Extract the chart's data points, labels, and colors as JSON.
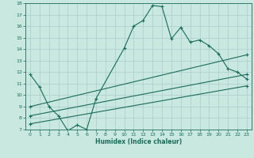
{
  "title": "",
  "xlabel": "Humidex (Indice chaleur)",
  "bg_color": "#c8e8e0",
  "grid_color": "#aacccc",
  "line_color": "#1a6b5a",
  "xlim": [
    -0.5,
    23.5
  ],
  "ylim": [
    7,
    18
  ],
  "xticks": [
    0,
    1,
    2,
    3,
    4,
    5,
    6,
    7,
    8,
    9,
    10,
    11,
    12,
    13,
    14,
    15,
    16,
    17,
    18,
    19,
    20,
    21,
    22,
    23
  ],
  "yticks": [
    7,
    8,
    9,
    10,
    11,
    12,
    13,
    14,
    15,
    16,
    17,
    18
  ],
  "line1_x": [
    0,
    1,
    2,
    3,
    4,
    5,
    6,
    7,
    10,
    11,
    12,
    13,
    14,
    15,
    16,
    17,
    18,
    19,
    20,
    21,
    22,
    23
  ],
  "line1_y": [
    11.8,
    10.7,
    9.0,
    8.2,
    6.9,
    7.4,
    7.0,
    9.7,
    14.1,
    16.0,
    16.5,
    17.8,
    17.7,
    14.9,
    15.9,
    14.6,
    14.8,
    14.3,
    13.6,
    12.3,
    12.0,
    11.4
  ],
  "line2_x": [
    0,
    23
  ],
  "line2_y": [
    9.0,
    13.5
  ],
  "line3_x": [
    0,
    23
  ],
  "line3_y": [
    8.2,
    11.8
  ],
  "line4_x": [
    0,
    23
  ],
  "line4_y": [
    7.5,
    10.8
  ]
}
